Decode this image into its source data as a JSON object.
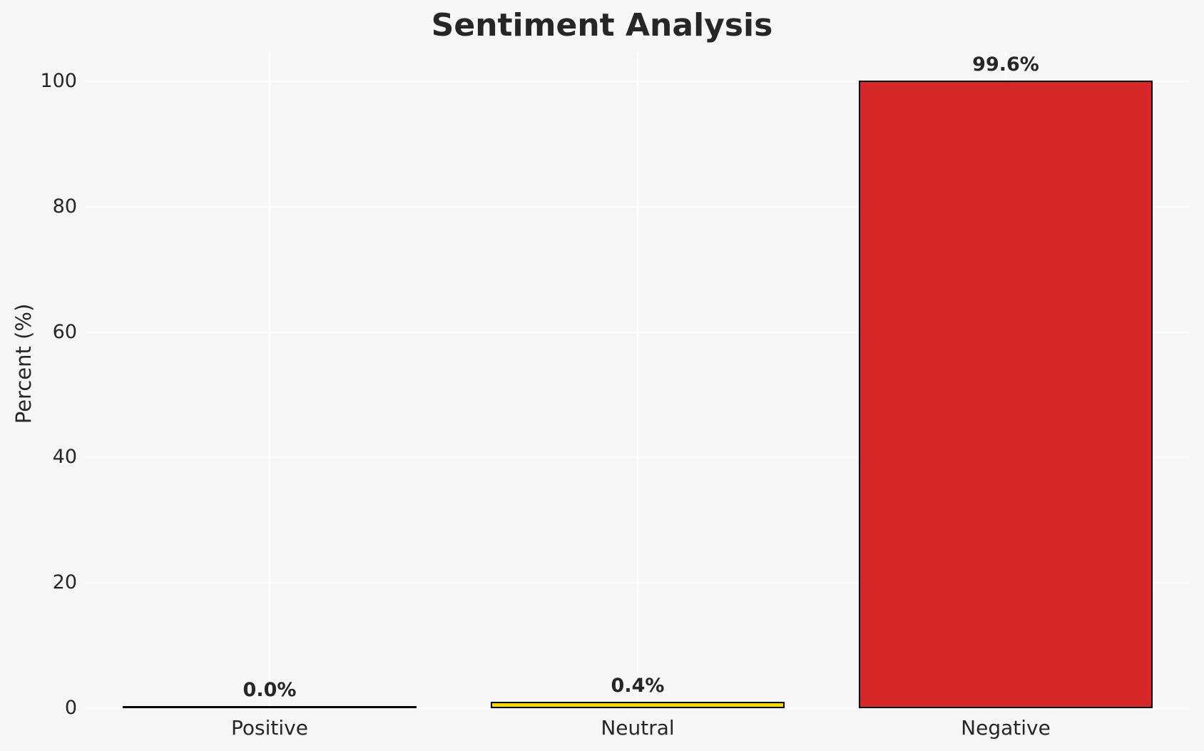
{
  "figure": {
    "background_color": "#f6f6f6",
    "grid_color": "#ffffff",
    "text_color": "#262626"
  },
  "chart_data": {
    "type": "bar",
    "title": "Sentiment Analysis",
    "xlabel": "",
    "ylabel": "Percent (%)",
    "categories": [
      "Positive",
      "Neutral",
      "Negative"
    ],
    "values": [
      0.0,
      0.4,
      99.6
    ],
    "value_labels": [
      "0.0%",
      "0.4%",
      "99.6%"
    ],
    "yticks": [
      0,
      20,
      40,
      60,
      80,
      100
    ],
    "ylim": [
      0,
      100
    ],
    "grid": "on",
    "legend": "none",
    "bar_colors": [
      "#2ca02c",
      "#ffd700",
      "#d62728"
    ],
    "bar_edge_color": "#000000"
  }
}
